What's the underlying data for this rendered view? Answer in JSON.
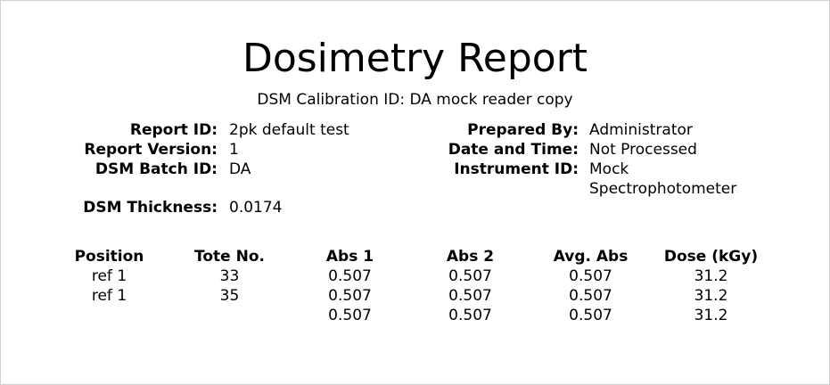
{
  "header": {
    "title": "Dosimetry Report",
    "subtitle": "DSM Calibration ID: DA mock reader copy"
  },
  "left_fields": [
    {
      "label": "Report ID:",
      "value": "2pk default test"
    },
    {
      "label": "Report Version:",
      "value": 1
    },
    {
      "label": "DSM Batch ID:",
      "value": "DA"
    },
    {
      "label": "DSM Thickness:",
      "value": 0.0174
    }
  ],
  "right_fields": [
    {
      "label": "Prepared By:",
      "value": "Administrator"
    },
    {
      "label": "Date and Time:",
      "value": "Not Processed"
    },
    {
      "label": "Instrument ID:",
      "value": "Mock Spectrophotometer"
    }
  ],
  "table": {
    "columns": [
      "Position",
      "Tote No.",
      "Abs 1",
      "Abs 2",
      "Avg. Abs",
      "Dose (kGy)"
    ],
    "rows": [
      [
        "ref 1",
        33,
        0.507,
        0.507,
        0.507,
        31.2
      ],
      [
        "ref 1",
        35,
        0.507,
        0.507,
        0.507,
        31.2
      ],
      [
        null,
        null,
        0.507,
        0.507,
        0.507,
        31.2
      ]
    ]
  }
}
